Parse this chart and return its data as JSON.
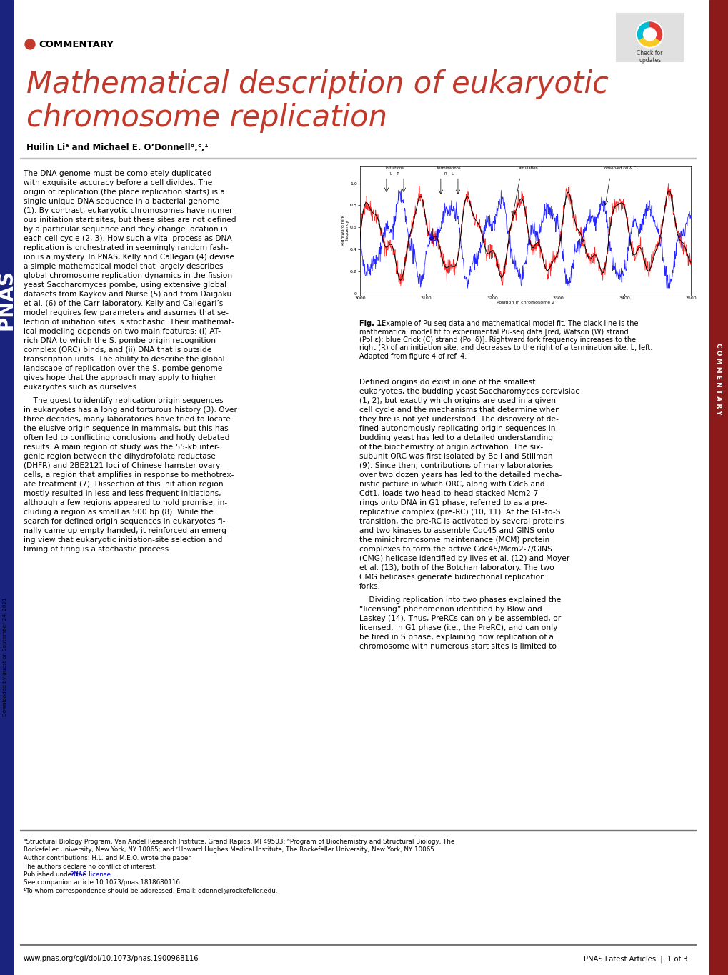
{
  "title_line1": "Mathematical description of eukaryotic",
  "title_line2": "chromosome replication",
  "title_color": "#C0392B",
  "commentary_label": "COMMENTARY",
  "commentary_dot_color": "#C0392B",
  "authors": "Huilin Liᵃ and Michael E. O’Donnellᵇ,ᶜ,¹",
  "left_bar_color": "#1a237e",
  "right_bar_color": "#8B1A1A",
  "pnas_text_color": "#1a237e",
  "sidebar_text": "COMMENTARY",
  "sidebar_bg": "#8B1A1A",
  "background_color": "#ffffff",
  "paragraph1": "The DNA genome must be completely duplicated\nwith exquisite accuracy before a cell divides. The\norigin of replication (the place replication starts) is a\nsingle unique DNA sequence in a bacterial genome\n(1). By contrast, eukaryotic chromosomes have numer-\nous initiation start sites, but these sites are not defined\nby a particular sequence and they change location in\neach cell cycle (2, 3). How such a vital process as DNA\nreplication is orchestrated in seemingly random fash-\nion is a mystery. In PNAS, Kelly and Callegari (4) devise\na simple mathematical model that largely describes\nglobal chromosome replication dynamics in the fission\nyeast Saccharomyces pombe, using extensive global\ndatasets from Kaykov and Nurse (5) and from Daigaku\net al. (6) of the Carr laboratory. Kelly and Callegari’s\nmodel requires few parameters and assumes that se-\nlection of initiation sites is stochastic. Their mathemat-\nical modeling depends on two main features: (i) AT-\nrich DNA to which the S. pombe origin recognition\ncomplex (ORC) binds, and (ii) DNA that is outside\ntranscription units. The ability to describe the global\nlandscape of replication over the S. pombe genome\ngives hope that the approach may apply to higher\neukaryotes such as ourselves.",
  "paragraph2": "    The quest to identify replication origin sequences\nin eukaryotes has a long and torturous history (3). Over\nthree decades, many laboratories have tried to locate\nthe elusive origin sequence in mammals, but this has\noften led to conflicting conclusions and hotly debated\nresults. A main region of study was the 55-kb inter-\ngenic region between the dihydrofolate reductase\n(DHFR) and 2BE2121 loci of Chinese hamster ovary\ncells, a region that amplifies in response to methotrex-\nate treatment (7). Dissection of this initiation region\nmostly resulted in less and less frequent initiations,\nalthough a few regions appeared to hold promise, in-\ncluding a region as small as 500 bp (8). While the\nsearch for defined origin sequences in eukaryotes fi-\nnally came up empty-handed, it reinforced an emerg-\ning view that eukaryotic initiation-site selection and\ntiming of firing is a stochastic process.",
  "paragraph3": "Defined origins do exist in one of the smallest\neukaryotes, the budding yeast Saccharomyces cerevisiae\n(1, 2), but exactly which origins are used in a given\ncell cycle and the mechanisms that determine when\nthey fire is not yet understood. The discovery of de-\nfined autonomously replicating origin sequences in\nbudding yeast has led to a detailed understanding\nof the biochemistry of origin activation. The six-\nsubunit ORC was first isolated by Bell and Stillman\n(9). Since then, contributions of many laboratories\nover two dozen years has led to the detailed mecha-\nnistic picture in which ORC, along with Cdc6 and\nCdt1, loads two head-to-head stacked Mcm2-7\nrings onto DNA in G1 phase, referred to as a pre-\nreplicative complex (pre-RC) (10, 11). At the G1-to-S\ntransition, the pre-RC is activated by several proteins\nand two kinases to assemble Cdc45 and GINS onto\nthe minichromosome maintenance (MCM) protein\ncomplexes to form the active Cdc45/Mcm2-7/GINS\n(CMG) helicase identified by Ilves et al. (12) and Moyer\net al. (13), both of the Botchan laboratory. The two\nCMG helicases generate bidirectional replication\nforks.",
  "paragraph4": "    Dividing replication into two phases explained the\n“licensing” phenomenon identified by Blow and\nLaskey (14). Thus, PreRCs can only be assembled, or\nlicensed, in G1 phase (i.e., the PreRC), and can only\nbe fired in S phase, explaining how replication of a\nchromosome with numerous start sites is limited to",
  "fig_caption_bold": "Fig. 1.",
  "fig_caption_rest": " Example of Pu-seq data and mathematical model fit. The black line is the\nmathematical model fit to experimental Pu-seq data [red, Watson (W) strand\n(Pol ε); blue Crick (C) strand (Pol δ)]. Rightward fork frequency increases to the\nright (R) of an initiation site, and decreases to the right of a termination site. L, left.\nAdapted from figure 4 of ref. 4.",
  "footnote1": "ᵃStructural Biology Program, Van Andel Research Institute, Grand Rapids, MI 49503; ᵇProgram of Biochemistry and Structural Biology, The",
  "footnote2": "Rockefeller University, New York, NY 10065; and ᶜHoward Hughes Medical Institute, The Rockefeller University, New York, NY 10065",
  "footnote3": "Author contributions: H.L. and M.E.O. wrote the paper.",
  "footnote4": "The authors declare no conflict of interest.",
  "footnote5_pre": "Published under the ",
  "footnote5_link": "PNAS license.",
  "footnote6": "See companion article 10.1073/pnas.1818680116.",
  "footnote7": "¹To whom correspondence should be addressed. Email: odonnel@rockefeller.edu.",
  "footer_left": "www.pnas.org/cgi/doi/10.1073/pnas.1900968116",
  "footer_right": "PNAS Latest Articles  |  1 of 3",
  "downloaded_text": "Downloaded by guest on September 24, 2021",
  "pnas_license_color": "#0000CC"
}
